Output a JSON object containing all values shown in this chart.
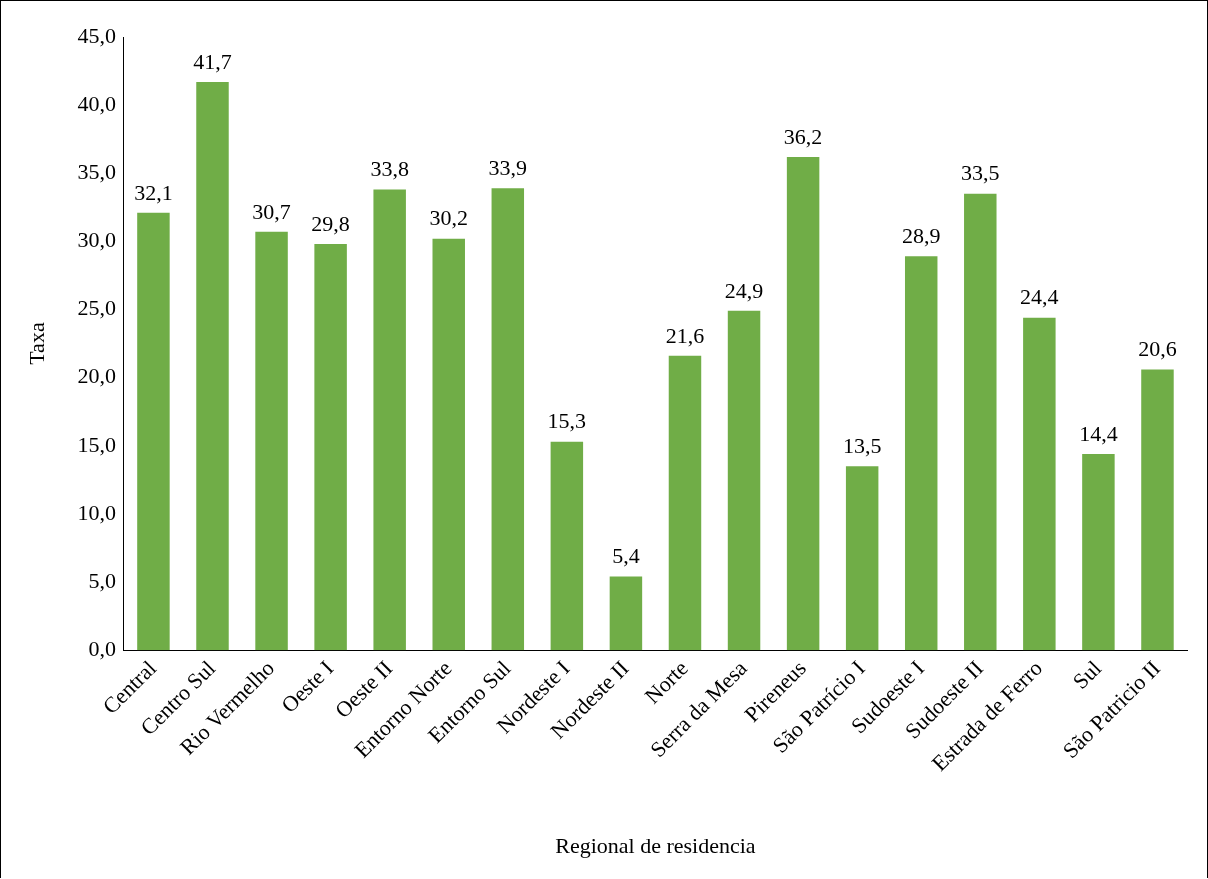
{
  "chart_data": {
    "type": "bar",
    "xlabel": "Regional de residencia",
    "ylabel": "Taxa",
    "categories": [
      "Central",
      "Centro Sul",
      "Rio Vermelho",
      "Oeste I",
      "Oeste II",
      "Entorno Norte",
      "Entorno Sul",
      "Nordeste I",
      "Nordeste II",
      "Norte",
      "Serra da Mesa",
      "Pireneus",
      "São Patrício I",
      "Sudoeste I",
      "Sudoeste II",
      "Estrada de Ferro",
      "Sul",
      "São Patricio II"
    ],
    "values": [
      32.1,
      41.7,
      30.7,
      29.8,
      33.8,
      30.2,
      33.9,
      15.3,
      5.4,
      21.6,
      24.9,
      36.2,
      13.5,
      28.9,
      33.5,
      24.4,
      14.4,
      20.6
    ],
    "value_labels": [
      "32,1",
      "41,7",
      "30,7",
      "29,8",
      "33,8",
      "30,2",
      "33,9",
      "15,3",
      "5,4",
      "21,6",
      "24,9",
      "36,2",
      "13,5",
      "28,9",
      "33,5",
      "24,4",
      "14,4",
      "20,6"
    ],
    "color": "#70ad47",
    "ylim": [
      0,
      45
    ],
    "yticks": [
      {
        "value": 0,
        "label": "0,0"
      },
      {
        "value": 5,
        "label": "5,0"
      },
      {
        "value": 10,
        "label": "10,0"
      },
      {
        "value": 15,
        "label": "15,0"
      },
      {
        "value": 20,
        "label": "20,0"
      },
      {
        "value": 25,
        "label": "25,0"
      },
      {
        "value": 30,
        "label": "30,0"
      },
      {
        "value": 35,
        "label": "35,0"
      },
      {
        "value": 40,
        "label": "40,0"
      },
      {
        "value": 45,
        "label": "45,0"
      }
    ],
    "grid": false,
    "legend": false
  }
}
